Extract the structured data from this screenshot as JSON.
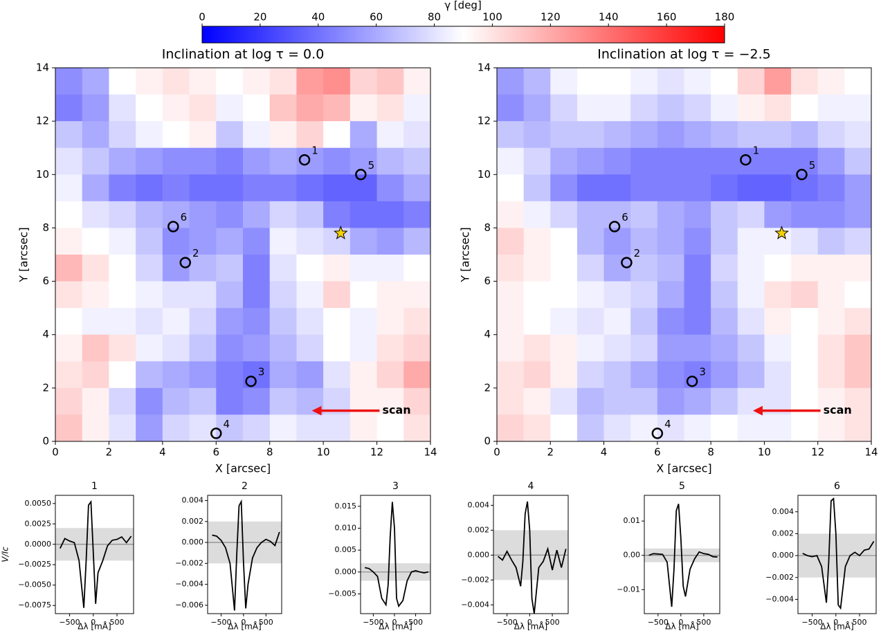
{
  "colorbar": {
    "label": "γ [deg]",
    "zlim": [
      0,
      180
    ],
    "ticks": [
      0,
      20,
      40,
      60,
      80,
      100,
      120,
      140,
      160,
      180
    ],
    "colormap": "bwr"
  },
  "chart_data": [
    {
      "type": "heatmap",
      "title": "Inclination at log τ = 0.0",
      "xlabel": "X [arcsec]",
      "ylabel": "Y [arcsec]",
      "xlim": [
        0,
        14
      ],
      "ylim": [
        0,
        14
      ],
      "xticks": [
        0,
        2,
        4,
        6,
        8,
        10,
        12,
        14
      ],
      "yticks": [
        0,
        2,
        4,
        6,
        8,
        10,
        12,
        14
      ],
      "z": [
        [
          50,
          60,
          90,
          95,
          100,
          95,
          90,
          95,
          100,
          125,
          130,
          105,
          110,
          95
        ],
        [
          45,
          55,
          80,
          90,
          95,
          100,
          85,
          90,
          110,
          120,
          115,
          95,
          100,
          85
        ],
        [
          70,
          60,
          75,
          85,
          90,
          95,
          70,
          85,
          95,
          105,
          90,
          60,
          85,
          80
        ],
        [
          80,
          70,
          60,
          55,
          50,
          50,
          45,
          55,
          60,
          55,
          50,
          55,
          65,
          70
        ],
        [
          85,
          60,
          45,
          40,
          45,
          40,
          40,
          45,
          45,
          40,
          35,
          35,
          50,
          60
        ],
        [
          90,
          80,
          75,
          65,
          60,
          55,
          50,
          60,
          75,
          70,
          45,
          40,
          40,
          45
        ],
        [
          95,
          90,
          85,
          70,
          50,
          55,
          60,
          50,
          85,
          80,
          75,
          60,
          55,
          65
        ],
        [
          115,
          100,
          90,
          75,
          55,
          65,
          70,
          45,
          80,
          90,
          95,
          85,
          85,
          90
        ],
        [
          100,
          95,
          90,
          85,
          80,
          80,
          65,
          45,
          75,
          85,
          105,
          90,
          95,
          95
        ],
        [
          90,
          85,
          85,
          80,
          85,
          75,
          55,
          50,
          70,
          80,
          90,
          85,
          95,
          100
        ],
        [
          95,
          110,
          100,
          85,
          80,
          70,
          50,
          55,
          65,
          75,
          90,
          85,
          100,
          105
        ],
        [
          100,
          105,
          90,
          65,
          60,
          55,
          45,
          40,
          60,
          55,
          80,
          95,
          105,
          120
        ],
        [
          105,
          95,
          75,
          50,
          65,
          70,
          45,
          50,
          70,
          65,
          75,
          95,
          95,
          105
        ],
        [
          110,
          95,
          80,
          55,
          75,
          80,
          70,
          75,
          85,
          80,
          80,
          95,
          90,
          100
        ]
      ],
      "points": {
        "x": [
          9.3,
          4.85,
          7.3,
          6.0,
          11.4,
          4.4
        ],
        "y": [
          10.55,
          6.7,
          2.25,
          0.3,
          10.0,
          8.05
        ],
        "labels": [
          "1",
          "2",
          "3",
          "4",
          "5",
          "6"
        ]
      },
      "star": {
        "x": 10.65,
        "y": 7.8
      },
      "annotation": {
        "text": "scan",
        "x_start": 12.1,
        "x_end": 9.6,
        "y": 1.15,
        "color": "#ee1111"
      }
    },
    {
      "type": "heatmap",
      "title": "Inclination at log τ = −2.5",
      "xlabel": "X [arcsec]",
      "ylabel": "Y [arcsec]",
      "xlim": [
        0,
        14
      ],
      "ylim": [
        0,
        14
      ],
      "xticks": [
        0,
        2,
        4,
        6,
        8,
        10,
        12,
        14
      ],
      "yticks": [
        0,
        2,
        4,
        6,
        8,
        10,
        12,
        14
      ],
      "z": [
        [
          55,
          65,
          85,
          90,
          90,
          85,
          80,
          85,
          90,
          105,
          125,
          100,
          95,
          90
        ],
        [
          50,
          60,
          75,
          85,
          85,
          75,
          70,
          75,
          85,
          95,
          100,
          90,
          85,
          85
        ],
        [
          70,
          65,
          70,
          70,
          65,
          60,
          55,
          60,
          65,
          70,
          70,
          65,
          75,
          80
        ],
        [
          85,
          75,
          60,
          55,
          50,
          45,
          45,
          45,
          45,
          45,
          45,
          45,
          55,
          70
        ],
        [
          90,
          70,
          50,
          40,
          40,
          45,
          45,
          45,
          40,
          35,
          35,
          40,
          45,
          55
        ],
        [
          95,
          85,
          75,
          65,
          65,
          70,
          60,
          55,
          70,
          75,
          55,
          50,
          50,
          55
        ],
        [
          105,
          95,
          90,
          65,
          55,
          65,
          60,
          50,
          70,
          85,
          85,
          80,
          70,
          75
        ],
        [
          100,
          95,
          90,
          75,
          60,
          70,
          65,
          45,
          75,
          85,
          90,
          95,
          95,
          95
        ],
        [
          95,
          90,
          90,
          85,
          80,
          75,
          60,
          45,
          70,
          85,
          100,
          105,
          95,
          90
        ],
        [
          95,
          90,
          85,
          80,
          85,
          70,
          50,
          45,
          65,
          80,
          95,
          90,
          95,
          100
        ],
        [
          95,
          100,
          95,
          85,
          80,
          75,
          55,
          55,
          60,
          70,
          85,
          90,
          100,
          110
        ],
        [
          100,
          105,
          95,
          75,
          70,
          60,
          50,
          45,
          55,
          65,
          80,
          90,
          100,
          110
        ],
        [
          100,
          95,
          80,
          65,
          70,
          70,
          55,
          60,
          70,
          80,
          80,
          90,
          95,
          100
        ],
        [
          105,
          100,
          90,
          70,
          80,
          85,
          80,
          85,
          90,
          85,
          85,
          90,
          95,
          100
        ]
      ],
      "points": {
        "x": [
          9.3,
          4.85,
          7.3,
          6.0,
          11.4,
          4.4
        ],
        "y": [
          10.55,
          6.7,
          2.25,
          0.3,
          10.0,
          8.05
        ],
        "labels": [
          "1",
          "2",
          "3",
          "4",
          "5",
          "6"
        ]
      },
      "star": {
        "x": 10.65,
        "y": 7.8
      },
      "annotation": {
        "text": "scan",
        "x_start": 12.1,
        "x_end": 9.6,
        "y": 1.15,
        "color": "#ee1111"
      }
    },
    {
      "type": "line",
      "title": "1",
      "xlabel": "Δλ [mÅ]",
      "ylabel": "V/Ic",
      "color": "#000000",
      "band": [
        -0.002,
        0.002
      ],
      "xlim": [
        -800,
        850
      ],
      "ylim": [
        -0.0085,
        0.006
      ],
      "xticks": [
        {
          "value": -500,
          "label": "−500"
        },
        0,
        500
      ],
      "yticks": [
        {
          "value": 0.005,
          "label": "0.0050"
        },
        {
          "value": 0.0025,
          "label": "0.0025"
        },
        {
          "value": 0,
          "label": "0.0000"
        },
        {
          "value": -0.0025,
          "label": "−0.0025"
        },
        {
          "value": -0.005,
          "label": "−0.0050"
        },
        {
          "value": -0.0075,
          "label": "−0.0075"
        }
      ],
      "x": [
        -700,
        -600,
        -500,
        -400,
        -300,
        -200,
        -150,
        -100,
        -50,
        0,
        50,
        100,
        200,
        300,
        400,
        500,
        600,
        700,
        800
      ],
      "values": [
        -0.0005,
        0.0007,
        0.0004,
        0.0002,
        -0.002,
        -0.0078,
        -0.002,
        0.0048,
        0.0052,
        -0.001,
        -0.0073,
        -0.0035,
        -0.002,
        -0.0002,
        0.0005,
        0.0006,
        0.0009,
        0.0002,
        0.001
      ]
    },
    {
      "type": "line",
      "title": "2",
      "xlabel": "Δλ [mÅ]",
      "color": "#000000",
      "band": [
        -0.002,
        0.002
      ],
      "xlim": [
        -800,
        850
      ],
      "ylim": [
        -0.0068,
        0.0045
      ],
      "xticks": [
        {
          "value": -500,
          "label": "−500"
        },
        0,
        500
      ],
      "yticks": [
        0.004,
        0.002,
        {
          "value": 0,
          "label": "0.000"
        },
        {
          "value": -0.002,
          "label": "−0.002"
        },
        {
          "value": -0.004,
          "label": "−0.004"
        },
        {
          "value": -0.006,
          "label": "−0.006"
        }
      ],
      "x": [
        -700,
        -600,
        -500,
        -400,
        -300,
        -200,
        -150,
        -100,
        -50,
        0,
        50,
        100,
        200,
        300,
        400,
        500,
        600,
        700,
        800
      ],
      "values": [
        0.0007,
        0.0006,
        0.0002,
        -0.0005,
        -0.002,
        -0.0065,
        -0.001,
        0.0035,
        0.0039,
        -0.002,
        -0.0063,
        -0.004,
        -0.0015,
        -0.0005,
        0,
        0.0003,
        0.0001,
        -0.0003,
        0.001
      ]
    },
    {
      "type": "line",
      "title": "3",
      "xlabel": "Δλ [mÅ]",
      "color": "#000000",
      "band": [
        -0.002,
        0.002
      ],
      "xlim": [
        -800,
        850
      ],
      "ylim": [
        -0.0095,
        0.0175
      ],
      "xticks": [
        {
          "value": -500,
          "label": "−500"
        },
        0,
        500
      ],
      "yticks": [
        0.015,
        {
          "value": 0.01,
          "label": "0.010"
        },
        0.005,
        {
          "value": 0,
          "label": "0.000"
        },
        {
          "value": -0.005,
          "label": "−0.005"
        }
      ],
      "x": [
        -700,
        -600,
        -500,
        -400,
        -300,
        -200,
        -150,
        -100,
        -50,
        0,
        50,
        100,
        200,
        300,
        400,
        500,
        600,
        700,
        800
      ],
      "values": [
        0.001,
        0.0008,
        0,
        -0.001,
        -0.006,
        -0.0075,
        -0.003,
        0.008,
        0.016,
        0.01,
        -0.006,
        -0.0078,
        -0.0065,
        -0.002,
        0,
        0.0003,
        0,
        -0.0002,
        0
      ]
    },
    {
      "type": "line",
      "title": "4",
      "xlabel": "Δλ [mÅ]",
      "color": "#000000",
      "band": [
        -0.002,
        0.002
      ],
      "xlim": [
        -800,
        850
      ],
      "ylim": [
        -0.0047,
        0.0048
      ],
      "xticks": [
        {
          "value": -500,
          "label": "−500"
        },
        0,
        500
      ],
      "yticks": [
        0.004,
        0.002,
        {
          "value": 0,
          "label": "0.000"
        },
        {
          "value": -0.002,
          "label": "−0.002"
        },
        {
          "value": -0.004,
          "label": "−0.004"
        }
      ],
      "x": [
        -700,
        -600,
        -500,
        -400,
        -300,
        -200,
        -150,
        -100,
        -50,
        0,
        50,
        100,
        200,
        300,
        400,
        500,
        600,
        700,
        800
      ],
      "values": [
        -0.0001,
        -0.0004,
        0.0003,
        -0.0004,
        -0.001,
        -0.0025,
        -0.0005,
        0.0033,
        0.0043,
        0.002,
        -0.0035,
        -0.0047,
        -0.001,
        -0.0005,
        0.0005,
        -0.0012,
        0.0004,
        -0.001,
        0.0005
      ]
    },
    {
      "type": "line",
      "title": "5",
      "xlabel": "Δλ [mÅ]",
      "color": "#000000",
      "band": [
        -0.002,
        0.002
      ],
      "xlim": [
        -800,
        850
      ],
      "ylim": [
        -0.017,
        0.0175
      ],
      "xticks": [
        {
          "value": -500,
          "label": "−500"
        },
        0,
        500
      ],
      "yticks": [
        0.01,
        {
          "value": 0,
          "label": "0.00"
        },
        {
          "value": -0.01,
          "label": "−0.01"
        }
      ],
      "x": [
        -700,
        -600,
        -500,
        -400,
        -300,
        -200,
        -150,
        -100,
        -50,
        0,
        50,
        100,
        200,
        300,
        400,
        500,
        600,
        700,
        800
      ],
      "values": [
        0,
        0.0005,
        0.0004,
        0.0003,
        -0.002,
        -0.015,
        -0.004,
        0.013,
        0.015,
        0.005,
        -0.009,
        -0.012,
        -0.004,
        -0.001,
        0.001,
        0.0005,
        0.0003,
        -0.0004,
        -0.0005
      ]
    },
    {
      "type": "line",
      "title": "6",
      "xlabel": "Δλ [mÅ]",
      "color": "#000000",
      "band": [
        -0.002,
        0.002
      ],
      "xlim": [
        -800,
        850
      ],
      "ylim": [
        -0.0053,
        0.0055
      ],
      "xticks": [
        {
          "value": -500,
          "label": "−500"
        },
        0,
        500
      ],
      "yticks": [
        0.004,
        0.002,
        {
          "value": 0,
          "label": "0.000"
        },
        {
          "value": -0.002,
          "label": "−0.002"
        },
        {
          "value": -0.004,
          "label": "−0.004"
        }
      ],
      "x": [
        -700,
        -600,
        -500,
        -400,
        -300,
        -200,
        -150,
        -100,
        -50,
        0,
        50,
        100,
        200,
        300,
        400,
        500,
        600,
        700,
        800
      ],
      "values": [
        0.0002,
        0,
        -0.0001,
        0,
        -0.001,
        -0.0043,
        -0.0005,
        0.005,
        0.0052,
        0.002,
        -0.0045,
        -0.0048,
        -0.001,
        0,
        0.0003,
        0,
        0.0005,
        0.0006,
        0.0013
      ]
    }
  ]
}
